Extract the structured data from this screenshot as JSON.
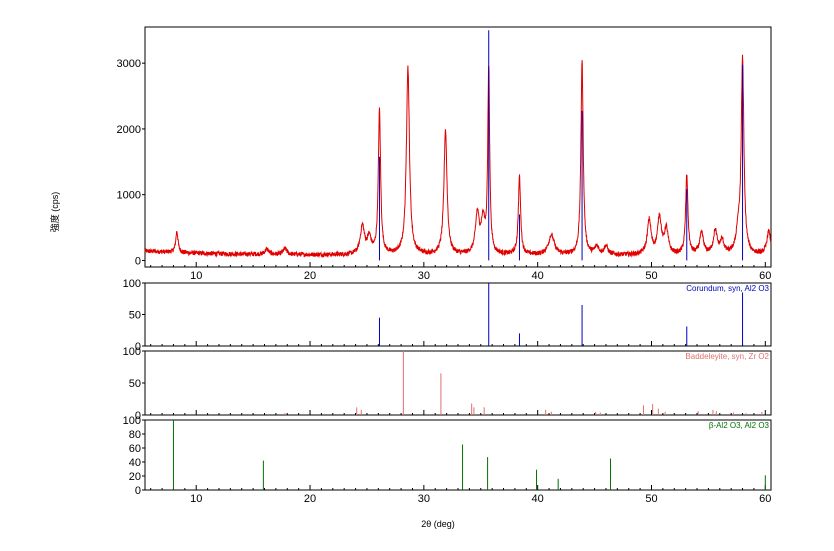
{
  "chart_data": {
    "type": "line",
    "x_axis": {
      "label": "2θ (deg)",
      "range": [
        5.5,
        60.5
      ],
      "ticks": [
        10,
        20,
        30,
        40,
        50,
        60
      ]
    },
    "main": {
      "ylabel": "強度 (cps)",
      "ylim": [
        -100,
        3550
      ],
      "yticks": [
        0,
        1000,
        2000,
        3000
      ],
      "series": [
        {
          "color": "#e00000",
          "baseline": 80,
          "noise": 35,
          "peaks": [
            {
              "x": 8.3,
              "h": 320,
              "w": 0.12
            },
            {
              "x": 16.2,
              "h": 80,
              "w": 0.2
            },
            {
              "x": 17.8,
              "h": 90,
              "w": 0.2
            },
            {
              "x": 24.6,
              "h": 430,
              "w": 0.22
            },
            {
              "x": 25.2,
              "h": 250,
              "w": 0.2
            },
            {
              "x": 26.1,
              "h": 2180,
              "w": 0.12
            },
            {
              "x": 28.6,
              "h": 2850,
              "w": 0.16
            },
            {
              "x": 31.9,
              "h": 1900,
              "w": 0.16
            },
            {
              "x": 34.7,
              "h": 600,
              "w": 0.2
            },
            {
              "x": 35.2,
              "h": 480,
              "w": 0.2
            },
            {
              "x": 35.7,
              "h": 2800,
              "w": 0.1
            },
            {
              "x": 38.4,
              "h": 1180,
              "w": 0.12
            },
            {
              "x": 41.2,
              "h": 300,
              "w": 0.3
            },
            {
              "x": 43.9,
              "h": 2950,
              "w": 0.12
            },
            {
              "x": 45.2,
              "h": 120,
              "w": 0.2
            },
            {
              "x": 46.0,
              "h": 130,
              "w": 0.2
            },
            {
              "x": 49.8,
              "h": 520,
              "w": 0.2
            },
            {
              "x": 50.7,
              "h": 560,
              "w": 0.2
            },
            {
              "x": 51.3,
              "h": 380,
              "w": 0.2
            },
            {
              "x": 53.1,
              "h": 1200,
              "w": 0.12
            },
            {
              "x": 54.4,
              "h": 320,
              "w": 0.2
            },
            {
              "x": 55.6,
              "h": 350,
              "w": 0.2
            },
            {
              "x": 56.2,
              "h": 200,
              "w": 0.2
            },
            {
              "x": 57.6,
              "h": 300,
              "w": 0.2
            },
            {
              "x": 58.0,
              "h": 2950,
              "w": 0.14
            },
            {
              "x": 60.3,
              "h": 350,
              "w": 0.2
            }
          ]
        }
      ],
      "overlay_sticks": {
        "color": "#0000c0",
        "source": "references.0"
      }
    },
    "references": [
      {
        "name": "Corundum, syn, Al2 O3",
        "color": "#0000c0",
        "ylim": [
          0,
          100
        ],
        "yticks": [
          0,
          50,
          100
        ],
        "overlay_scale": 3500,
        "sticks": [
          [
            26.1,
            45
          ],
          [
            35.7,
            100
          ],
          [
            38.4,
            20
          ],
          [
            43.9,
            65
          ],
          [
            53.1,
            31
          ],
          [
            58.0,
            85
          ]
        ]
      },
      {
        "name": "Baddeleyite, syn, Zr O2",
        "color": "#e07070",
        "ylim": [
          0,
          100
        ],
        "yticks": [
          0,
          50,
          100
        ],
        "sticks": [
          [
            17.8,
            3
          ],
          [
            24.1,
            12
          ],
          [
            24.5,
            8
          ],
          [
            28.2,
            100
          ],
          [
            31.5,
            65
          ],
          [
            34.2,
            18
          ],
          [
            34.4,
            12
          ],
          [
            35.3,
            12
          ],
          [
            40.7,
            8
          ],
          [
            41.2,
            5
          ],
          [
            45.1,
            5
          ],
          [
            45.5,
            4
          ],
          [
            49.3,
            15
          ],
          [
            50.1,
            17
          ],
          [
            50.6,
            10
          ],
          [
            51.2,
            5
          ],
          [
            54.1,
            6
          ],
          [
            55.4,
            8
          ],
          [
            55.7,
            6
          ],
          [
            57.2,
            4
          ],
          [
            58.3,
            3
          ],
          [
            59.7,
            5
          ]
        ]
      },
      {
        "name": "β-Al2 O3, Al2 O3",
        "color": "#007000",
        "ylim": [
          0,
          100
        ],
        "yticks": [
          0,
          20,
          40,
          60,
          80,
          100
        ],
        "sticks": [
          [
            8.0,
            100
          ],
          [
            15.9,
            42
          ],
          [
            33.4,
            65
          ],
          [
            35.6,
            47
          ],
          [
            39.9,
            29
          ],
          [
            41.8,
            16
          ],
          [
            46.4,
            45
          ],
          [
            60.0,
            21
          ]
        ]
      }
    ]
  }
}
